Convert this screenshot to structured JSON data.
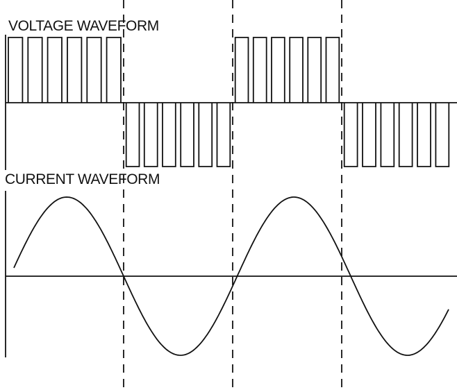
{
  "labels": {
    "voltage": "VOLTAGE WAVEFORM",
    "current": "CURRENT WAVEFORM"
  },
  "colors": {
    "line": "#111111",
    "background": "#ffffff"
  },
  "diagram": {
    "half_cycles": 4,
    "pulses_per_half_cycle": 6,
    "voltage_polarity_sequence": [
      1,
      -1,
      1,
      -1
    ],
    "current_cycles": 2
  }
}
